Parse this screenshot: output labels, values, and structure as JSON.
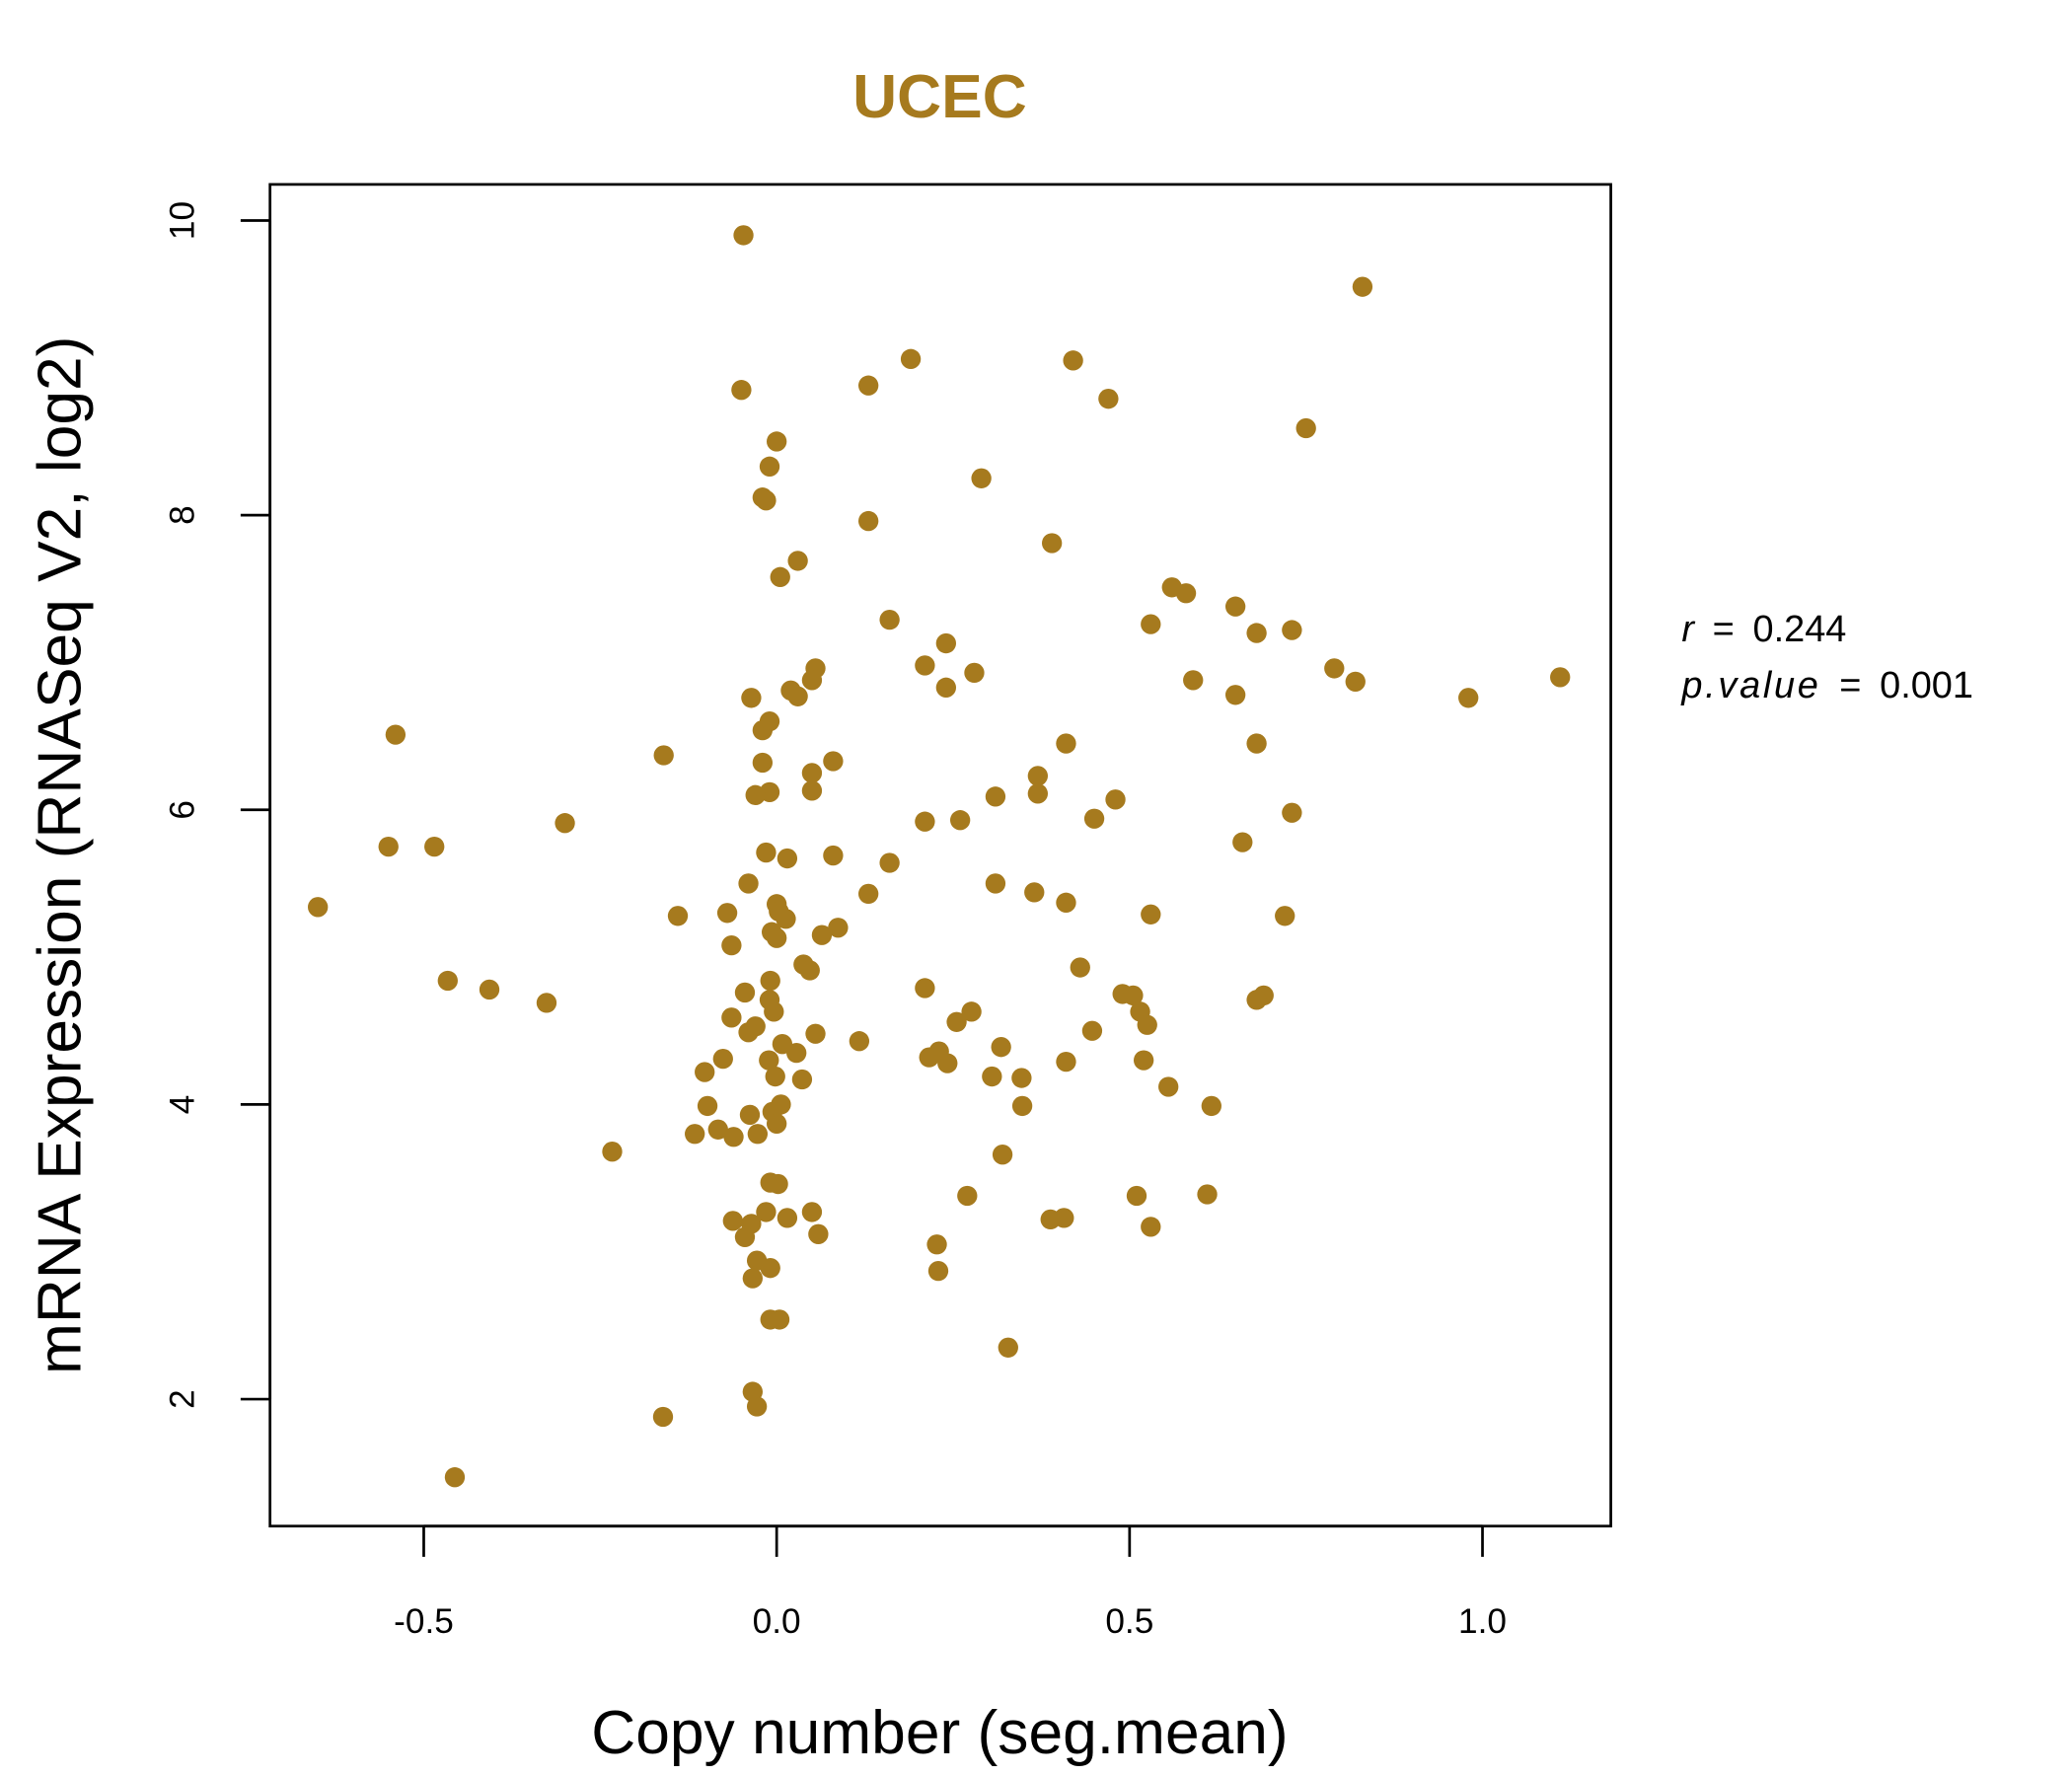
{
  "chart_data": {
    "type": "scatter",
    "title": "UCEC",
    "xlabel": "Copy number (seg.mean)",
    "ylabel": "mRNA Expression (RNASeq V2, log2)",
    "xlim": [
      -0.72,
      1.18
    ],
    "ylim": [
      1.15,
      10.25
    ],
    "xticks": [
      -0.5,
      0.0,
      0.5,
      1.0
    ],
    "xtick_labels": [
      "-0.5",
      "0.0",
      "0.5",
      "1.0"
    ],
    "yticks": [
      2,
      4,
      6,
      8,
      10
    ],
    "ytick_labels": [
      "2",
      "4",
      "6",
      "8",
      "10"
    ],
    "grid": false,
    "color": "#A67A1E",
    "annotation": {
      "r_label": "r",
      "r_value": "0.244",
      "p_label": "p.value",
      "p_value": "0.001",
      "eq": "="
    },
    "points": [
      [
        -0.047,
        9.9
      ],
      [
        0.83,
        9.55
      ],
      [
        0.19,
        9.06
      ],
      [
        0.42,
        9.05
      ],
      [
        0.13,
        8.88
      ],
      [
        -0.05,
        8.85
      ],
      [
        0.47,
        8.79
      ],
      [
        0.75,
        8.59
      ],
      [
        0.0,
        8.5
      ],
      [
        -0.01,
        8.33
      ],
      [
        0.29,
        8.25
      ],
      [
        -0.02,
        8.12
      ],
      [
        -0.015,
        8.1
      ],
      [
        0.13,
        7.96
      ],
      [
        0.39,
        7.81
      ],
      [
        0.03,
        7.69
      ],
      [
        0.005,
        7.58
      ],
      [
        0.56,
        7.51
      ],
      [
        0.58,
        7.47
      ],
      [
        0.65,
        7.38
      ],
      [
        0.16,
        7.29
      ],
      [
        0.53,
        7.26
      ],
      [
        0.68,
        7.2
      ],
      [
        0.73,
        7.22
      ],
      [
        0.24,
        7.13
      ],
      [
        0.21,
        6.98
      ],
      [
        0.055,
        6.96
      ],
      [
        0.79,
        6.96
      ],
      [
        0.28,
        6.93
      ],
      [
        0.05,
        6.88
      ],
      [
        0.59,
        6.88
      ],
      [
        0.82,
        6.87
      ],
      [
        1.11,
        6.9
      ],
      [
        0.02,
        6.81
      ],
      [
        0.24,
        6.83
      ],
      [
        0.03,
        6.77
      ],
      [
        -0.036,
        6.76
      ],
      [
        0.65,
        6.78
      ],
      [
        0.98,
        6.76
      ],
      [
        -0.01,
        6.6
      ],
      [
        -0.02,
        6.54
      ],
      [
        -0.54,
        6.51
      ],
      [
        0.41,
        6.45
      ],
      [
        0.68,
        6.45
      ],
      [
        -0.16,
        6.37
      ],
      [
        0.08,
        6.33
      ],
      [
        -0.02,
        6.32
      ],
      [
        0.05,
        6.25
      ],
      [
        0.37,
        6.23
      ],
      [
        -0.01,
        6.12
      ],
      [
        -0.03,
        6.1
      ],
      [
        0.05,
        6.13
      ],
      [
        0.31,
        6.09
      ],
      [
        0.37,
        6.11
      ],
      [
        0.48,
        6.07
      ],
      [
        0.73,
        5.98
      ],
      [
        0.45,
        5.94
      ],
      [
        0.21,
        5.92
      ],
      [
        0.26,
        5.93
      ],
      [
        -0.3,
        5.91
      ],
      [
        0.66,
        5.78
      ],
      [
        -0.55,
        5.75
      ],
      [
        -0.485,
        5.75
      ],
      [
        -0.015,
        5.71
      ],
      [
        0.015,
        5.67
      ],
      [
        0.08,
        5.69
      ],
      [
        0.16,
        5.64
      ],
      [
        0.31,
        5.5
      ],
      [
        -0.04,
        5.5
      ],
      [
        0.13,
        5.43
      ],
      [
        0.365,
        5.44
      ],
      [
        0.41,
        5.37
      ],
      [
        -0.65,
        5.34
      ],
      [
        0.0,
        5.36
      ],
      [
        -0.07,
        5.3
      ],
      [
        0.53,
        5.29
      ],
      [
        0.72,
        5.28
      ],
      [
        -0.14,
        5.28
      ],
      [
        0.003,
        5.31
      ],
      [
        0.013,
        5.26
      ],
      [
        -0.007,
        5.17
      ],
      [
        0.087,
        5.2
      ],
      [
        0.064,
        5.15
      ],
      [
        0.0,
        5.13
      ],
      [
        -0.064,
        5.08
      ],
      [
        0.038,
        4.95
      ],
      [
        0.43,
        4.93
      ],
      [
        0.047,
        4.91
      ],
      [
        -0.466,
        4.84
      ],
      [
        -0.009,
        4.84
      ],
      [
        -0.407,
        4.78
      ],
      [
        0.21,
        4.79
      ],
      [
        -0.045,
        4.76
      ],
      [
        0.49,
        4.75
      ],
      [
        0.505,
        4.74
      ],
      [
        0.69,
        4.74
      ],
      [
        0.68,
        4.71
      ],
      [
        -0.01,
        4.71
      ],
      [
        -0.326,
        4.69
      ],
      [
        0.276,
        4.63
      ],
      [
        0.515,
        4.63
      ],
      [
        -0.004,
        4.63
      ],
      [
        0.255,
        4.56
      ],
      [
        -0.064,
        4.59
      ],
      [
        0.525,
        4.54
      ],
      [
        -0.03,
        4.53
      ],
      [
        -0.04,
        4.49
      ],
      [
        0.447,
        4.5
      ],
      [
        0.055,
        4.48
      ],
      [
        0.117,
        4.43
      ],
      [
        0.008,
        4.41
      ],
      [
        0.318,
        4.39
      ],
      [
        0.23,
        4.36
      ],
      [
        0.028,
        4.35
      ],
      [
        0.216,
        4.32
      ],
      [
        -0.076,
        4.31
      ],
      [
        -0.011,
        4.3
      ],
      [
        0.41,
        4.29
      ],
      [
        0.52,
        4.3
      ],
      [
        0.242,
        4.28
      ],
      [
        -0.102,
        4.22
      ],
      [
        -0.002,
        4.19
      ],
      [
        0.305,
        4.19
      ],
      [
        0.347,
        4.18
      ],
      [
        0.036,
        4.17
      ],
      [
        0.555,
        4.12
      ],
      [
        0.006,
        4.0
      ],
      [
        -0.098,
        3.99
      ],
      [
        0.348,
        3.99
      ],
      [
        0.616,
        3.99
      ],
      [
        -0.006,
        3.95
      ],
      [
        -0.038,
        3.93
      ],
      [
        0.0,
        3.87
      ],
      [
        -0.083,
        3.83
      ],
      [
        -0.116,
        3.8
      ],
      [
        -0.027,
        3.8
      ],
      [
        -0.061,
        3.78
      ],
      [
        -0.233,
        3.68
      ],
      [
        0.32,
        3.66
      ],
      [
        -0.009,
        3.47
      ],
      [
        0.002,
        3.46
      ],
      [
        0.27,
        3.38
      ],
      [
        0.51,
        3.38
      ],
      [
        0.61,
        3.39
      ],
      [
        -0.015,
        3.27
      ],
      [
        0.05,
        3.27
      ],
      [
        0.015,
        3.23
      ],
      [
        0.407,
        3.23
      ],
      [
        0.388,
        3.22
      ],
      [
        -0.062,
        3.21
      ],
      [
        -0.036,
        3.19
      ],
      [
        0.53,
        3.17
      ],
      [
        0.059,
        3.12
      ],
      [
        -0.045,
        3.1
      ],
      [
        0.227,
        3.05
      ],
      [
        -0.028,
        2.94
      ],
      [
        -0.009,
        2.89
      ],
      [
        0.229,
        2.87
      ],
      [
        -0.034,
        2.82
      ],
      [
        -0.009,
        2.54
      ],
      [
        0.004,
        2.54
      ],
      [
        0.328,
        2.35
      ],
      [
        -0.034,
        2.05
      ],
      [
        -0.028,
        1.95
      ],
      [
        -0.161,
        1.88
      ],
      [
        -0.456,
        1.47
      ]
    ]
  }
}
